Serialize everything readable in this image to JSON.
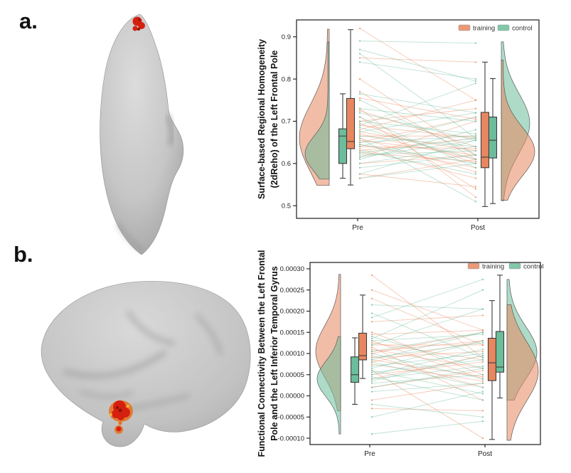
{
  "page": {
    "background_color": "#ffffff"
  },
  "panels": {
    "a": {
      "label": "a."
    },
    "b": {
      "label": "b."
    }
  },
  "palette": {
    "training": "#E8875F",
    "control": "#6CBD9B",
    "box_stroke": "#3D3D3D",
    "axis_color": "#1A1A1A",
    "tick_text": "#222222",
    "activation_red": "#D5200F",
    "activation_orange": "#E86F1D",
    "activation_yellow": "#F7B32A",
    "brain_light": "#D8D8D8",
    "brain_dark": "#A0A0A0"
  },
  "chart_data": [
    {
      "id": "reho",
      "type": "raincloud",
      "ylabel_lines": [
        "Surface-based Regional Homogeneity",
        "(2dReho) of the Left Frontal Pole"
      ],
      "yticks": [
        {
          "label": "0.5",
          "value": 0.5
        },
        {
          "label": "0.6",
          "value": 0.6
        },
        {
          "label": "0.7",
          "value": 0.7
        },
        {
          "label": "0.8",
          "value": 0.8
        },
        {
          "label": "0.9",
          "value": 0.9
        }
      ],
      "ylim": [
        0.47,
        0.94
      ],
      "categories": [
        "Pre",
        "Post"
      ],
      "legend": [
        {
          "label": "training",
          "key": "training"
        },
        {
          "label": "control",
          "key": "control"
        }
      ],
      "boxes": [
        {
          "cat": "Pre",
          "group": "control",
          "lo": 0.565,
          "q1": 0.6,
          "median": 0.665,
          "q3": 0.682,
          "hi": 0.765
        },
        {
          "cat": "Pre",
          "group": "training",
          "lo": 0.549,
          "q1": 0.635,
          "median": 0.652,
          "q3": 0.754,
          "hi": 0.917
        },
        {
          "cat": "Post",
          "group": "training",
          "lo": 0.498,
          "q1": 0.59,
          "median": 0.615,
          "q3": 0.721,
          "hi": 0.84
        },
        {
          "cat": "Post",
          "group": "control",
          "lo": 0.505,
          "q1": 0.613,
          "median": 0.655,
          "q3": 0.71,
          "hi": 0.801
        }
      ],
      "violins": [
        {
          "side": "left",
          "group": "training",
          "lo": 0.548,
          "hi": 0.918,
          "peak": 0.66,
          "sd": 0.08,
          "maxw": 42
        },
        {
          "side": "left",
          "group": "control",
          "lo": 0.563,
          "hi": 0.888,
          "peak": 0.623,
          "sd": 0.042,
          "maxw": 34
        },
        {
          "side": "right",
          "group": "control",
          "lo": 0.512,
          "hi": 0.888,
          "peak": 0.695,
          "sd": 0.07,
          "maxw": 40
        },
        {
          "side": "right",
          "group": "training",
          "lo": 0.513,
          "hi": 0.845,
          "peak": 0.628,
          "sd": 0.058,
          "maxw": 47
        }
      ],
      "paired_lines": {
        "training": [
          [
            0.92,
            0.75
          ],
          [
            0.85,
            0.84
          ],
          [
            0.8,
            0.62
          ],
          [
            0.77,
            0.61
          ],
          [
            0.755,
            0.705
          ],
          [
            0.73,
            0.52
          ],
          [
            0.725,
            0.64
          ],
          [
            0.71,
            0.54
          ],
          [
            0.7,
            0.73
          ],
          [
            0.695,
            0.6
          ],
          [
            0.69,
            0.66
          ],
          [
            0.68,
            0.75
          ],
          [
            0.675,
            0.63
          ],
          [
            0.67,
            0.61
          ],
          [
            0.665,
            0.665
          ],
          [
            0.66,
            0.58
          ],
          [
            0.655,
            0.62
          ],
          [
            0.65,
            0.71
          ],
          [
            0.645,
            0.59
          ],
          [
            0.64,
            0.635
          ],
          [
            0.635,
            0.565
          ],
          [
            0.63,
            0.66
          ],
          [
            0.625,
            0.605
          ],
          [
            0.615,
            0.7
          ],
          [
            0.6,
            0.62
          ],
          [
            0.575,
            0.545
          ],
          [
            0.565,
            0.61
          ]
        ],
        "control": [
          [
            0.89,
            0.885
          ],
          [
            0.87,
            0.795
          ],
          [
            0.86,
            0.66
          ],
          [
            0.84,
            0.8
          ],
          [
            0.765,
            0.72
          ],
          [
            0.75,
            0.62
          ],
          [
            0.73,
            0.7
          ],
          [
            0.72,
            0.655
          ],
          [
            0.71,
            0.59
          ],
          [
            0.7,
            0.67
          ],
          [
            0.69,
            0.79
          ],
          [
            0.685,
            0.61
          ],
          [
            0.675,
            0.72
          ],
          [
            0.665,
            0.64
          ],
          [
            0.66,
            0.51
          ],
          [
            0.65,
            0.665
          ],
          [
            0.645,
            0.6
          ],
          [
            0.64,
            0.71
          ],
          [
            0.63,
            0.575
          ],
          [
            0.625,
            0.66
          ],
          [
            0.62,
            0.63
          ],
          [
            0.615,
            0.655
          ],
          [
            0.61,
            0.68
          ],
          [
            0.6,
            0.64
          ],
          [
            0.59,
            0.62
          ],
          [
            0.575,
            0.655
          ],
          [
            0.565,
            0.6
          ]
        ]
      }
    },
    {
      "id": "fc",
      "type": "raincloud",
      "ylabel_lines": [
        "Functional Connectivity Between the Left Frontal",
        "Pole and the Left Inferior Temporal Gyrus"
      ],
      "yticks": [
        {
          "label": "-0.00010",
          "value": -0.0001
        },
        {
          "label": "-0.00005",
          "value": -5e-05
        },
        {
          "label": "0.00000",
          "value": 0.0
        },
        {
          "label": "0.00005",
          "value": 5e-05
        },
        {
          "label": "0.00010",
          "value": 0.0001
        },
        {
          "label": "0.00015",
          "value": 0.00015
        },
        {
          "label": "0.00020",
          "value": 0.0002
        },
        {
          "label": "0.00025",
          "value": 0.00025
        },
        {
          "label": "0.00030",
          "value": 0.0003
        }
      ],
      "ylim": [
        -0.000115,
        0.000315
      ],
      "categories": [
        "Pre",
        "Post"
      ],
      "legend": [
        {
          "label": "training",
          "key": "training"
        },
        {
          "label": "control",
          "key": "control"
        }
      ],
      "boxes": [
        {
          "cat": "Pre",
          "group": "control",
          "lo": -2e-05,
          "q1": 3.2e-05,
          "median": 5e-05,
          "q3": 9.2e-05,
          "hi": 0.000137
        },
        {
          "cat": "Pre",
          "group": "training",
          "lo": 4.1e-05,
          "q1": 8.5e-05,
          "median": 9.5e-05,
          "q3": 0.000148,
          "hi": 0.000238
        },
        {
          "cat": "Post",
          "group": "training",
          "lo": -0.000103,
          "q1": 3.6e-05,
          "median": 7.8e-05,
          "q3": 0.000136,
          "hi": 0.000225
        },
        {
          "cat": "Post",
          "group": "control",
          "lo": -5e-06,
          "q1": 5.6e-05,
          "median": 6.8e-05,
          "q3": 0.000152,
          "hi": 0.000285
        }
      ],
      "violins": [
        {
          "side": "left",
          "group": "training",
          "lo": -3.5e-05,
          "hi": 0.000287,
          "peak": 0.000105,
          "sd": 6.2e-05,
          "maxw": 35
        },
        {
          "side": "left",
          "group": "control",
          "lo": -9e-05,
          "hi": 0.00014,
          "peak": 4e-05,
          "sd": 4.2e-05,
          "maxw": 33
        },
        {
          "side": "right",
          "group": "control",
          "lo": -1e-05,
          "hi": 0.000275,
          "peak": 0.000102,
          "sd": 6.2e-05,
          "maxw": 42
        },
        {
          "side": "right",
          "group": "training",
          "lo": -0.000105,
          "hi": 0.000215,
          "peak": 5.8e-05,
          "sd": 7e-05,
          "maxw": 44
        }
      ],
      "paired_lines": {
        "training": [
          [
            0.000285,
            9e-05
          ],
          [
            0.00025,
            0.000155
          ],
          [
            0.00023,
            0.00012
          ],
          [
            0.000175,
            0.00019
          ],
          [
            0.00015,
            5e-05
          ],
          [
            0.000145,
            0.000155
          ],
          [
            0.00013,
            4e-05
          ],
          [
            0.000125,
            8.5e-05
          ],
          [
            0.00012,
            0.00012
          ],
          [
            0.000115,
            -1e-05
          ],
          [
            0.00011,
            6.5e-05
          ],
          [
            0.000105,
            0.00013
          ],
          [
            0.0001,
            0.00015
          ],
          [
            9.5e-05,
            2e-05
          ],
          [
            9e-05,
            0.000105
          ],
          [
            8.5e-05,
            4.5e-05
          ],
          [
            8e-05,
            0.00013
          ],
          [
            7.5e-05,
            3.5e-05
          ],
          [
            6e-05,
            -0.0001
          ],
          [
            5e-05,
            8e-05
          ],
          [
            4e-05,
            9.5e-05
          ],
          [
            2e-05,
            6e-05
          ],
          [
            -1e-05,
            3e-05
          ],
          [
            -3e-05,
            -3.5e-05
          ]
        ],
        "control": [
          [
            0.000215,
            0.000205
          ],
          [
            0.000195,
            9e-05
          ],
          [
            0.000185,
            0.000275
          ],
          [
            0.00014,
            6.5e-05
          ],
          [
            0.000135,
            0.00025
          ],
          [
            0.00013,
            0.000145
          ],
          [
            0.00012,
            0.000205
          ],
          [
            0.000105,
            0.00015
          ],
          [
            0.0001,
            4e-05
          ],
          [
            9e-05,
            0.000125
          ],
          [
            8.5e-05,
            0.00015
          ],
          [
            8e-05,
            2e-05
          ],
          [
            7e-05,
            0.0001
          ],
          [
            6.5e-05,
            0.00013
          ],
          [
            6e-05,
            5e-06
          ],
          [
            5.5e-05,
            8.5e-05
          ],
          [
            5e-05,
            0.00011
          ],
          [
            4.5e-05,
            -1e-05
          ],
          [
            4e-05,
            7e-05
          ],
          [
            3.5e-05,
            9.5e-05
          ],
          [
            3e-05,
            5e-05
          ],
          [
            2e-05,
            6.5e-05
          ],
          [
            1e-05,
            3e-05
          ],
          [
            -2e-05,
            -5e-05
          ],
          [
            -5e-05,
            1e-05
          ],
          [
            -9e-05,
            -6e-05
          ]
        ]
      }
    }
  ]
}
